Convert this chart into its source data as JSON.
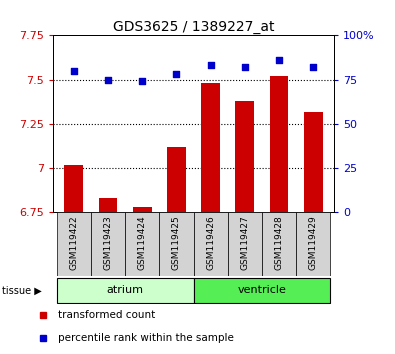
{
  "title": "GDS3625 / 1389227_at",
  "samples": [
    "GSM119422",
    "GSM119423",
    "GSM119424",
    "GSM119425",
    "GSM119426",
    "GSM119427",
    "GSM119428",
    "GSM119429"
  ],
  "transformed_count": [
    7.02,
    6.83,
    6.78,
    7.12,
    7.48,
    7.38,
    7.52,
    7.32
  ],
  "percentile_rank": [
    80,
    75,
    74,
    78,
    83,
    82,
    86,
    82
  ],
  "bar_bottom": 6.75,
  "ylim_left": [
    6.75,
    7.75
  ],
  "ylim_right": [
    0,
    100
  ],
  "yticks_left": [
    6.75,
    7.0,
    7.25,
    7.5,
    7.75
  ],
  "ytick_labels_left": [
    "6.75",
    "7",
    "7.25",
    "7.5",
    "7.75"
  ],
  "yticks_right": [
    0,
    25,
    50,
    75,
    100
  ],
  "ytick_labels_right": [
    "0",
    "25",
    "50",
    "75",
    "100%"
  ],
  "bar_color": "#cc0000",
  "dot_color": "#0000cc",
  "tissue_groups": [
    {
      "label": "atrium",
      "samples": [
        0,
        1,
        2,
        3
      ],
      "color": "#ccffcc"
    },
    {
      "label": "ventricle",
      "samples": [
        4,
        5,
        6,
        7
      ],
      "color": "#55ee55"
    }
  ],
  "legend_items": [
    {
      "label": "transformed count",
      "color": "#cc0000"
    },
    {
      "label": "percentile rank within the sample",
      "color": "#0000cc"
    }
  ],
  "tick_color_left": "#cc0000",
  "tick_color_right": "#0000cc",
  "gridline_y": [
    7.0,
    7.25,
    7.5
  ],
  "sample_box_color": "#d3d3d3"
}
